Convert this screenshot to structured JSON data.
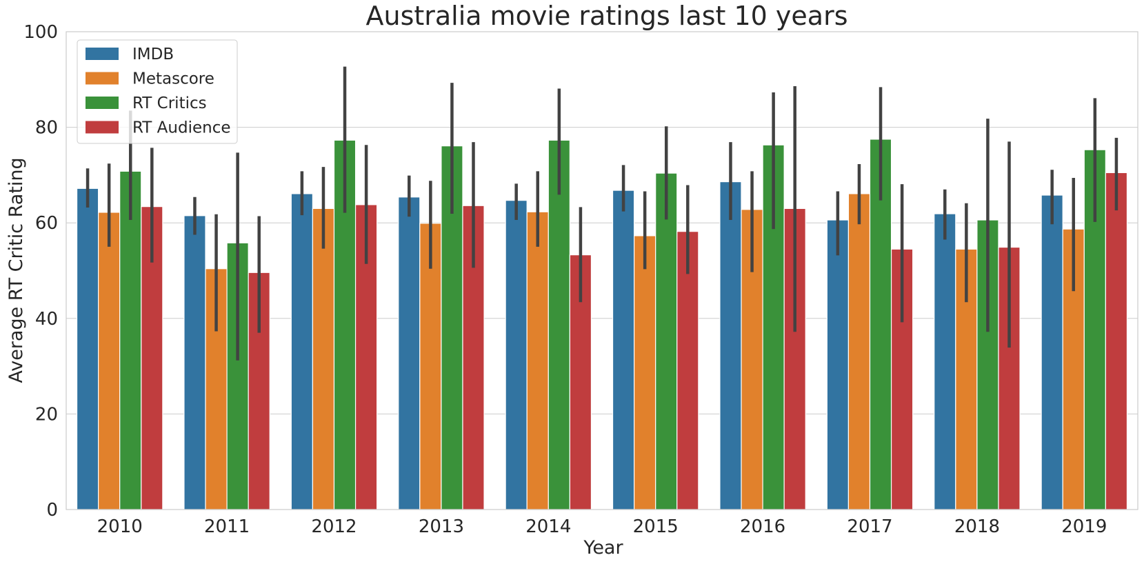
{
  "chart_data": {
    "type": "bar",
    "title": "Australia movie ratings last 10 years",
    "xlabel": "Year",
    "ylabel": "Average RT Critic Rating",
    "ylim": [
      0,
      100
    ],
    "yticks": [
      0,
      20,
      40,
      60,
      80,
      100
    ],
    "grid": true,
    "legend_position": "top-left",
    "categories": [
      "2010",
      "2011",
      "2012",
      "2013",
      "2014",
      "2015",
      "2016",
      "2017",
      "2018",
      "2019"
    ],
    "series": [
      {
        "name": "IMDB",
        "color": "#3274a1",
        "values": [
          67.2,
          61.5,
          66.1,
          65.4,
          64.7,
          66.8,
          68.6,
          60.6,
          61.9,
          65.8
        ],
        "ci_low": [
          63.2,
          57.5,
          61.6,
          61.3,
          60.6,
          62.4,
          60.6,
          53.2,
          56.5,
          59.7
        ],
        "ci_high": [
          71.4,
          65.4,
          70.8,
          69.9,
          68.2,
          72.1,
          76.9,
          66.6,
          67.0,
          71.1
        ]
      },
      {
        "name": "Metascore",
        "color": "#e1812c",
        "values": [
          62.2,
          50.4,
          63.0,
          59.9,
          62.3,
          57.3,
          62.8,
          66.1,
          54.5,
          58.7
        ],
        "ci_low": [
          55.0,
          37.3,
          54.6,
          50.4,
          55.0,
          50.3,
          49.7,
          59.7,
          43.4,
          45.7
        ],
        "ci_high": [
          72.4,
          61.8,
          71.7,
          68.8,
          70.8,
          66.6,
          70.8,
          72.3,
          64.1,
          69.4
        ]
      },
      {
        "name": "RT Critics",
        "color": "#3a923a",
        "values": [
          70.8,
          55.8,
          77.3,
          76.1,
          77.3,
          70.4,
          76.3,
          77.5,
          60.6,
          75.3
        ],
        "ci_low": [
          60.6,
          31.2,
          62.1,
          61.9,
          65.9,
          60.7,
          58.7,
          64.7,
          37.2,
          60.2
        ],
        "ci_high": [
          83.5,
          74.7,
          92.7,
          89.3,
          88.1,
          80.2,
          87.3,
          88.4,
          81.8,
          86.1
        ]
      },
      {
        "name": "RT Audience",
        "color": "#c03d3e",
        "values": [
          63.4,
          49.6,
          63.8,
          63.6,
          53.3,
          58.2,
          63.0,
          54.5,
          54.9,
          70.5
        ],
        "ci_low": [
          51.7,
          37.0,
          51.4,
          50.6,
          43.4,
          49.3,
          37.2,
          39.2,
          33.9,
          62.6
        ],
        "ci_high": [
          75.7,
          61.4,
          76.3,
          76.9,
          63.3,
          67.9,
          88.6,
          68.1,
          77.0,
          77.8
        ]
      }
    ]
  }
}
